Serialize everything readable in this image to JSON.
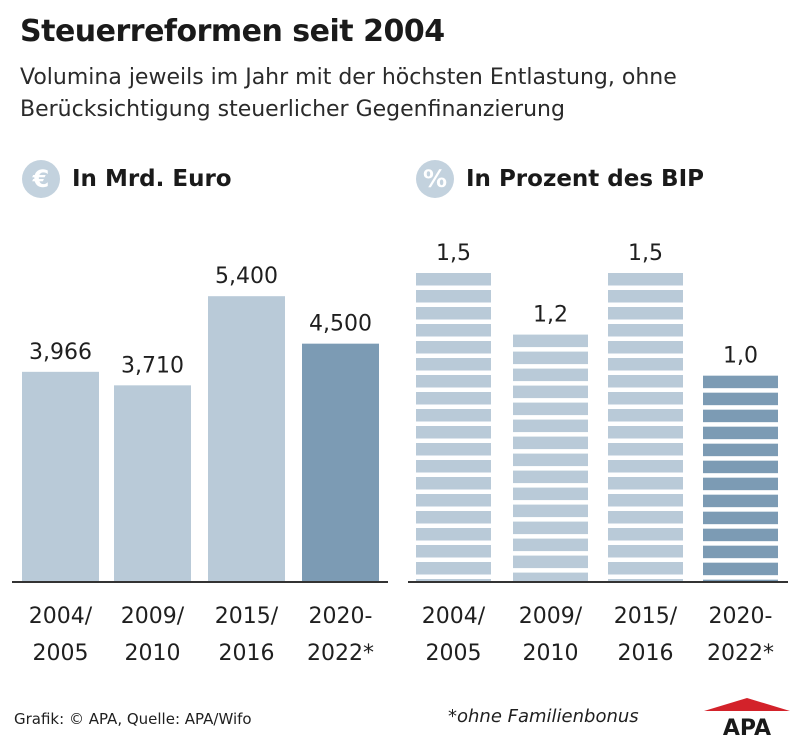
{
  "title": "Steuerreformen seit 2004",
  "subtitle": "Volumina jeweils im Jahr mit der höchsten Entlastung, ohne Berücksichtigung steuerlicher Gegenfinanzierung",
  "panels": [
    {
      "icon_symbol": "€",
      "icon_name": "euro-icon",
      "label": "In Mrd. Euro"
    },
    {
      "icon_symbol": "%",
      "icon_name": "percent-icon",
      "label": "In Prozent des BIP"
    }
  ],
  "colors": {
    "bar_light": "#b9cad8",
    "bar_dark": "#7c9bb4",
    "badge": "#c3d2de",
    "axis": "#333333",
    "logo_red": "#d3222a"
  },
  "chart_data": [
    {
      "type": "bar",
      "title": "In Mrd. Euro",
      "categories": [
        [
          "2004/",
          "2005"
        ],
        [
          "2009/",
          "2010"
        ],
        [
          "2015/",
          "2016"
        ],
        [
          "2020-",
          "2022*"
        ]
      ],
      "values": [
        3.966,
        3.71,
        5.4,
        4.5
      ],
      "value_labels": [
        "3,966",
        "3,710",
        "5,400",
        "4,500"
      ],
      "highlight_index": 3,
      "ylim": [
        0,
        6.2
      ],
      "grid": false,
      "style": "solid"
    },
    {
      "type": "bar",
      "title": "In Prozent des BIP",
      "categories": [
        [
          "2004/",
          "2005"
        ],
        [
          "2009/",
          "2010"
        ],
        [
          "2015/",
          "2016"
        ],
        [
          "2020-",
          "2022*"
        ]
      ],
      "values": [
        1.5,
        1.2,
        1.5,
        1.0
      ],
      "value_labels": [
        "1,5",
        "1,2",
        "1,5",
        "1,0"
      ],
      "highlight_index": 3,
      "ylim": [
        0,
        1.5
      ],
      "grid": false,
      "style": "striped"
    }
  ],
  "footer": {
    "credit": "Grafik: © APA, Quelle: APA/Wifo",
    "note": "*ohne Familienbonus",
    "logo_text": "APA"
  }
}
